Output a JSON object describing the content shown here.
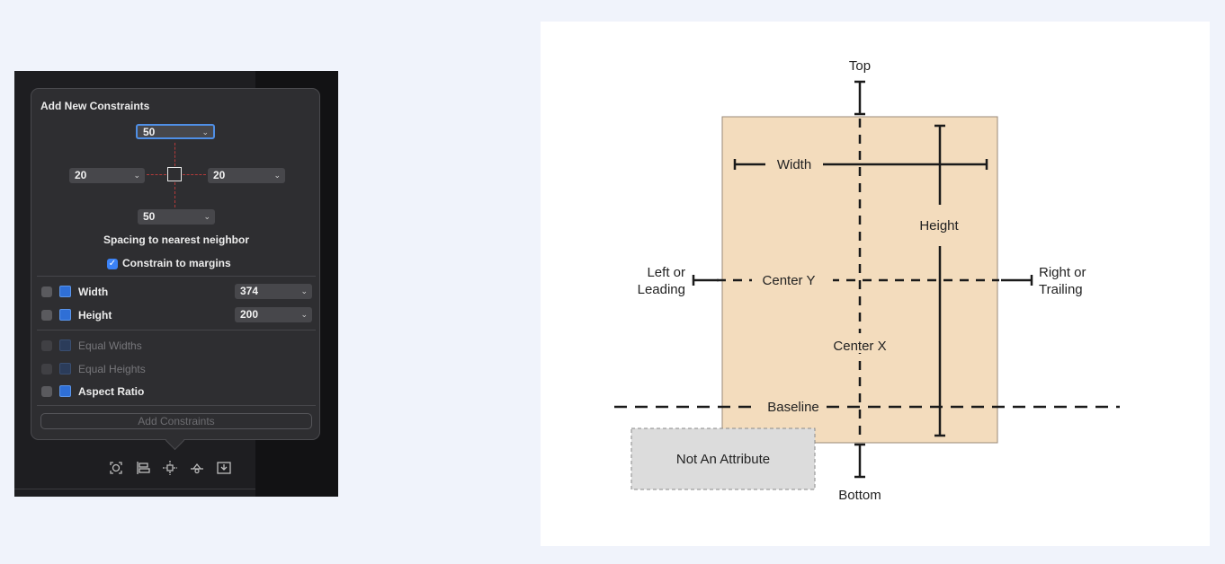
{
  "popover": {
    "title": "Add New Constraints",
    "top_spacing": "50",
    "leading_spacing": "20",
    "trailing_spacing": "20",
    "bottom_spacing": "50",
    "spacing_label": "Spacing to nearest neighbor",
    "constrain_to_margins": {
      "label": "Constrain to margins",
      "checked": true
    },
    "width": {
      "label": "Width",
      "value": "374",
      "checked": false
    },
    "height": {
      "label": "Height",
      "value": "200",
      "checked": false
    },
    "equal_widths": {
      "label": "Equal Widths",
      "enabled": false
    },
    "equal_heights": {
      "label": "Equal Heights",
      "enabled": false
    },
    "aspect_ratio": {
      "label": "Aspect Ratio",
      "checked": false
    },
    "add_button": "Add Constraints",
    "chevron": "⌄",
    "checkmark": "✓"
  },
  "toolbar": {
    "icons": [
      "update-frames-icon",
      "align-icon",
      "add-new-constraints-icon",
      "resolve-auto-layout-issues-icon",
      "embed-in-icon"
    ]
  },
  "diagram": {
    "labels": {
      "top": "Top",
      "bottom": "Bottom",
      "width": "Width",
      "height": "Height",
      "left_line1": "Left or",
      "left_line2": "Leading",
      "right_line1": "Right or",
      "right_line2": "Trailing",
      "center_y": "Center Y",
      "center_x": "Center X",
      "baseline": "Baseline",
      "not_an_attribute": "Not An Attribute"
    },
    "colors": {
      "view_fill": "#f3dcbd",
      "view_stroke": "#9a8a78",
      "line": "#1a1a1a",
      "not_attribute_fill": "#dcdcdc"
    }
  }
}
